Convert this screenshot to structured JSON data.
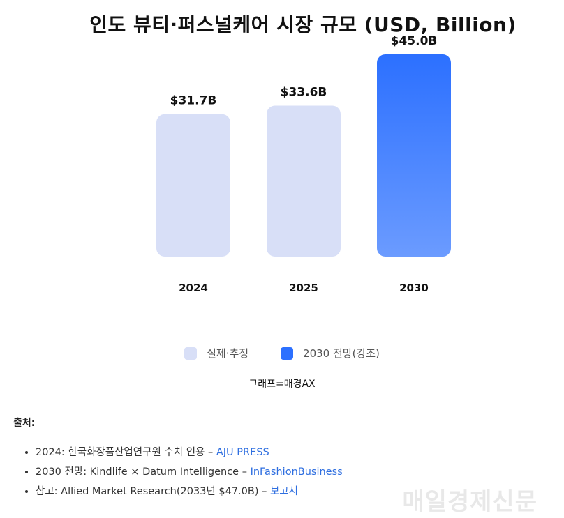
{
  "chart_data": {
    "type": "bar",
    "title": "인도 뷰티·퍼스널케어 시장 규모 (USD, Billion)",
    "categories": [
      "2024",
      "2025",
      "2030"
    ],
    "values": [
      31.7,
      33.6,
      45.0
    ],
    "value_labels": [
      "$31.7B",
      "$33.6B",
      "$45.0B"
    ],
    "highlight_index": 2,
    "ylim": [
      0,
      45
    ],
    "grid": false,
    "legend_position": "bottom",
    "colors": {
      "normal": "#d8dff7",
      "highlight_top": "#2c70ff",
      "highlight_bottom": "#6b9bff"
    },
    "legend": [
      {
        "label": "실제·추정",
        "color": "#d8dff7"
      },
      {
        "label": "2030 전망(강조)",
        "color": "#2c70ff"
      }
    ]
  },
  "credit": "그래프=매경AX",
  "sources": {
    "heading": "출처:",
    "items": [
      {
        "text": "2024: 한국화장품산업연구원 수치 인용 – ",
        "link": "AJU PRESS"
      },
      {
        "text": "2030 전망: Kindlife × Datum Intelligence – ",
        "link": "InFashionBusiness"
      },
      {
        "text": "참고: Allied Market Research(2033년 $47.0B) – ",
        "link": "보고서"
      }
    ]
  },
  "watermark": "매일경제신문"
}
